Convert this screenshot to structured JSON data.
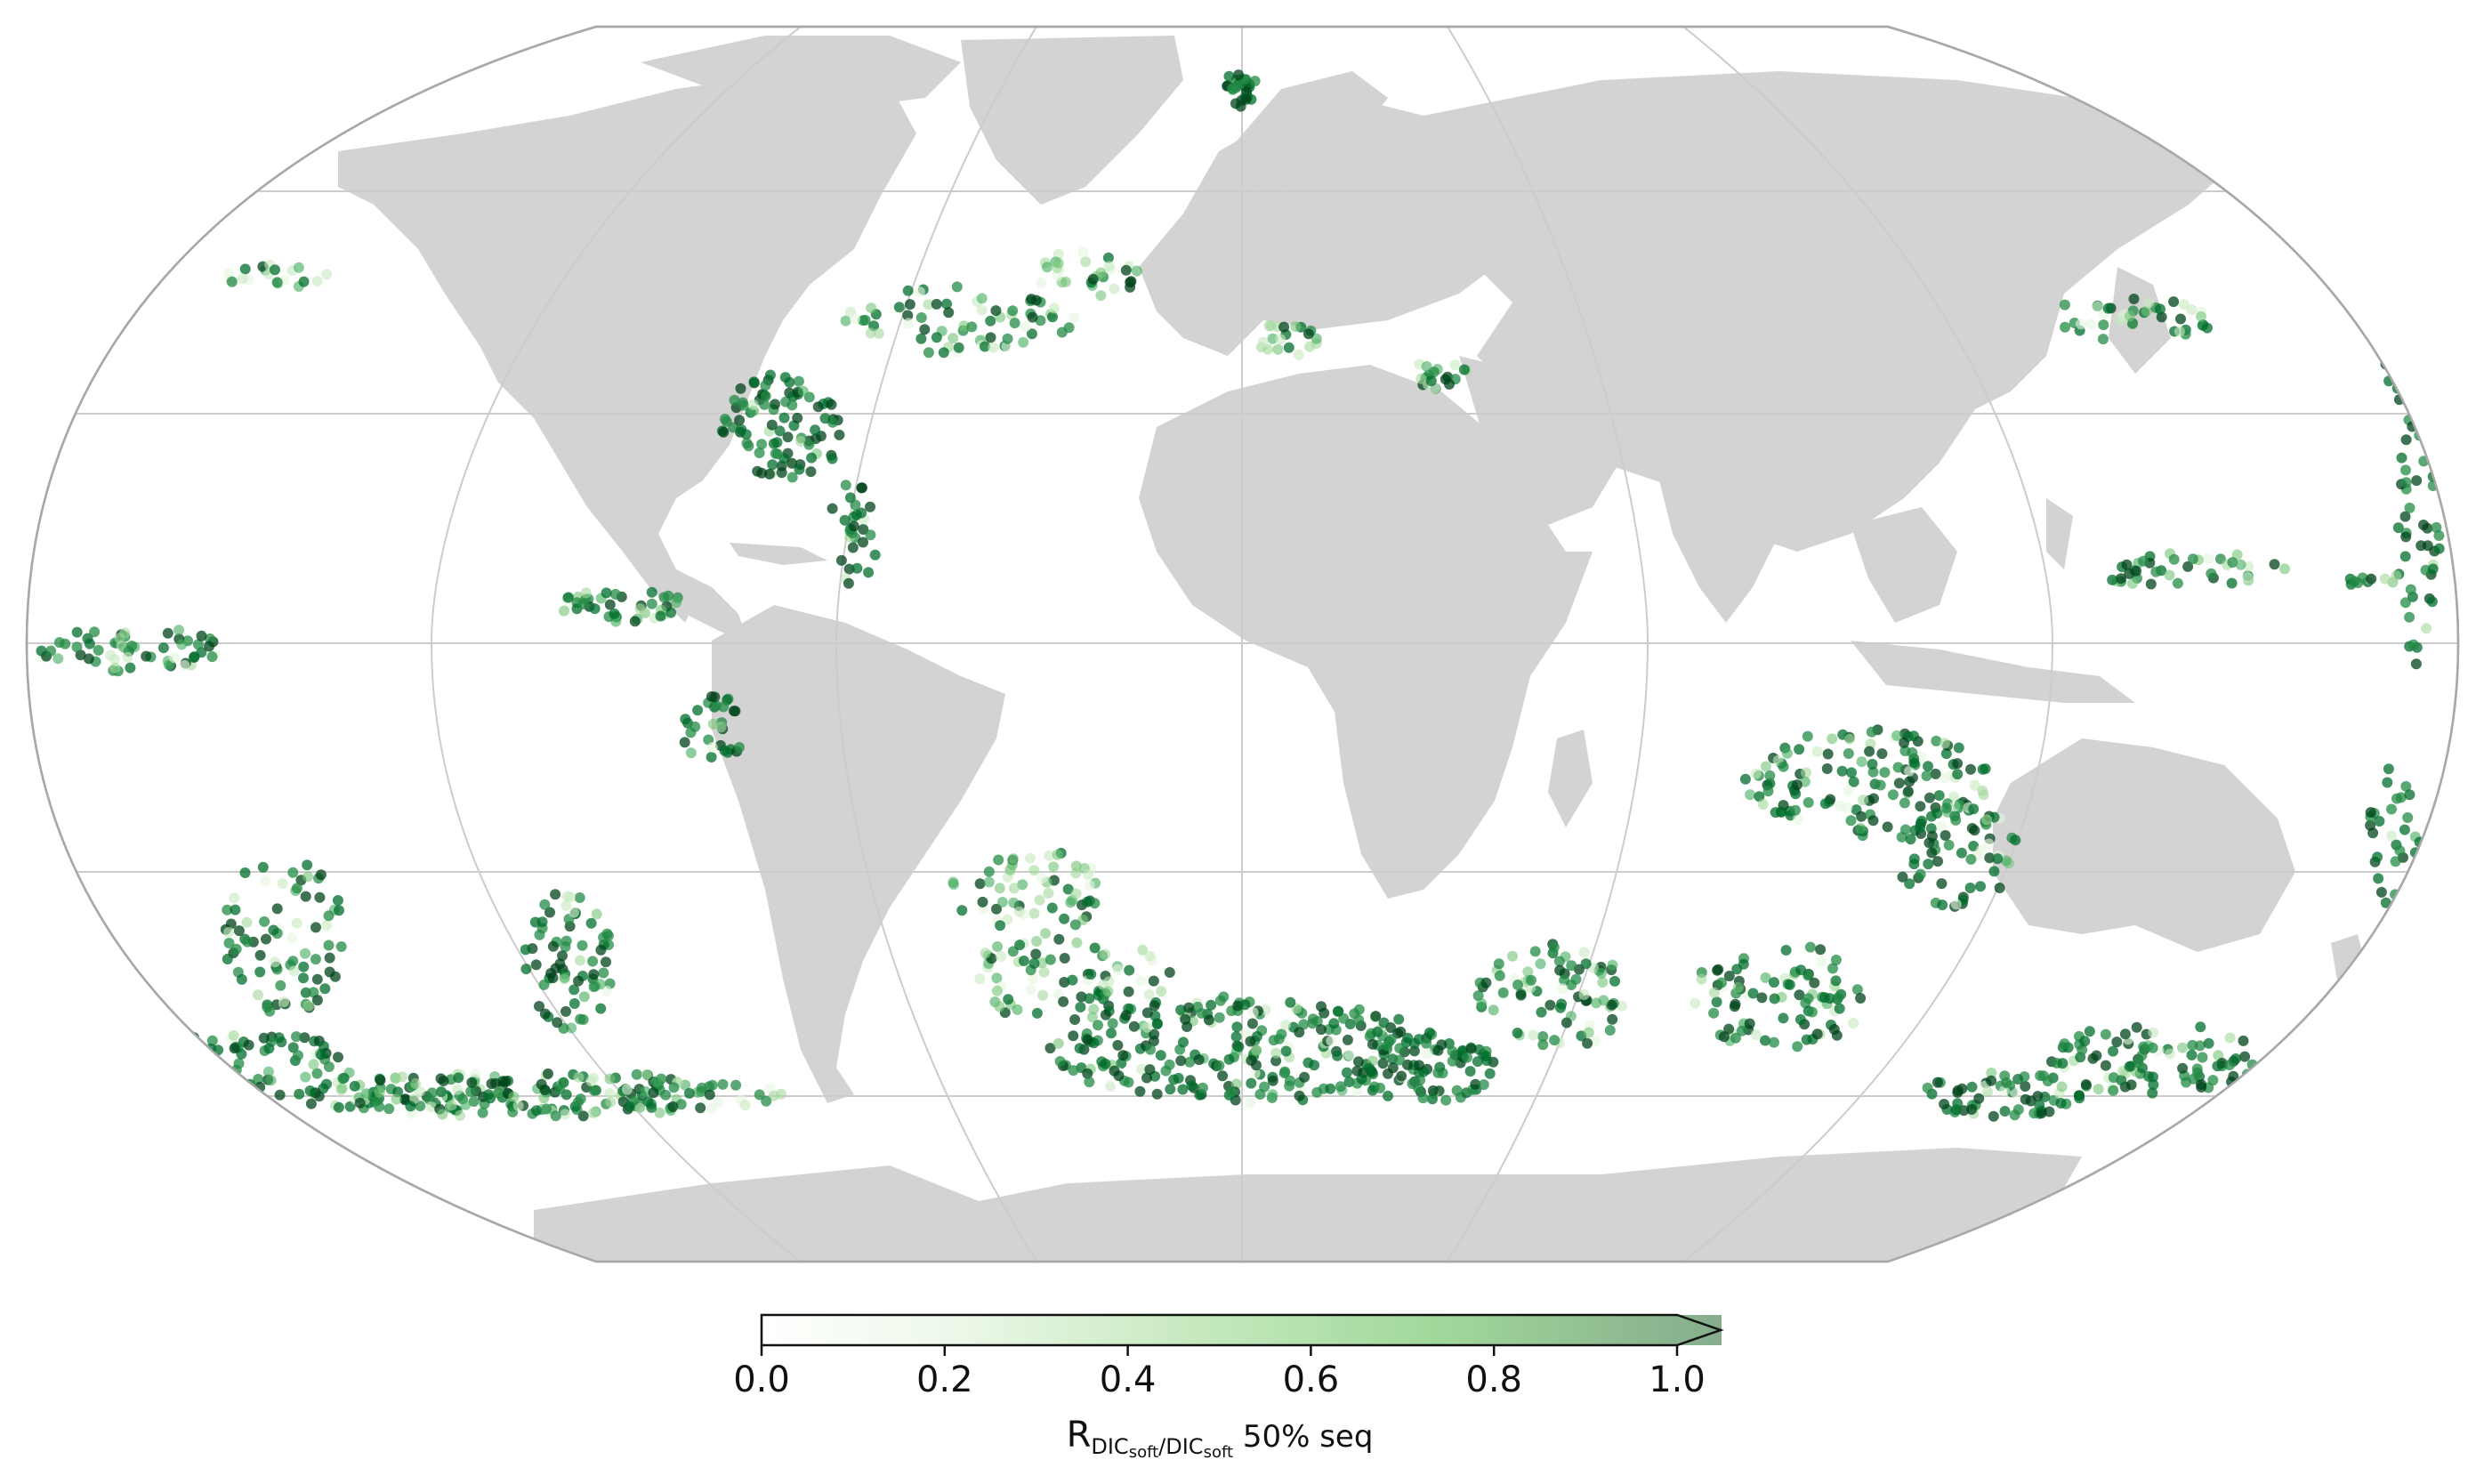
{
  "colorbar": {
    "ticks": [
      "0.0",
      "0.2",
      "0.4",
      "0.6",
      "0.8",
      "1.0"
    ],
    "tick_values": [
      0.0,
      0.2,
      0.4,
      0.6,
      0.8,
      1.0
    ],
    "range": [
      0.0,
      1.0
    ],
    "extend": "max",
    "label_main": "R",
    "label_sub1": "DIC",
    "label_sub1_sub": "soft",
    "label_slash": "/DIC",
    "label_sub2_sub": "soft",
    "label_tail": " 50% seq",
    "colors": [
      "#ffffff",
      "#e5f5e0",
      "#a1d99b",
      "#41ab5d",
      "#006d2c",
      "#00441b"
    ]
  },
  "map": {
    "projection": "robinson",
    "land_color": "#d3d3d3",
    "ocean_color": "#ffffff",
    "gridline_color": "#cccccc",
    "border_color": "#a0a0a0"
  }
}
